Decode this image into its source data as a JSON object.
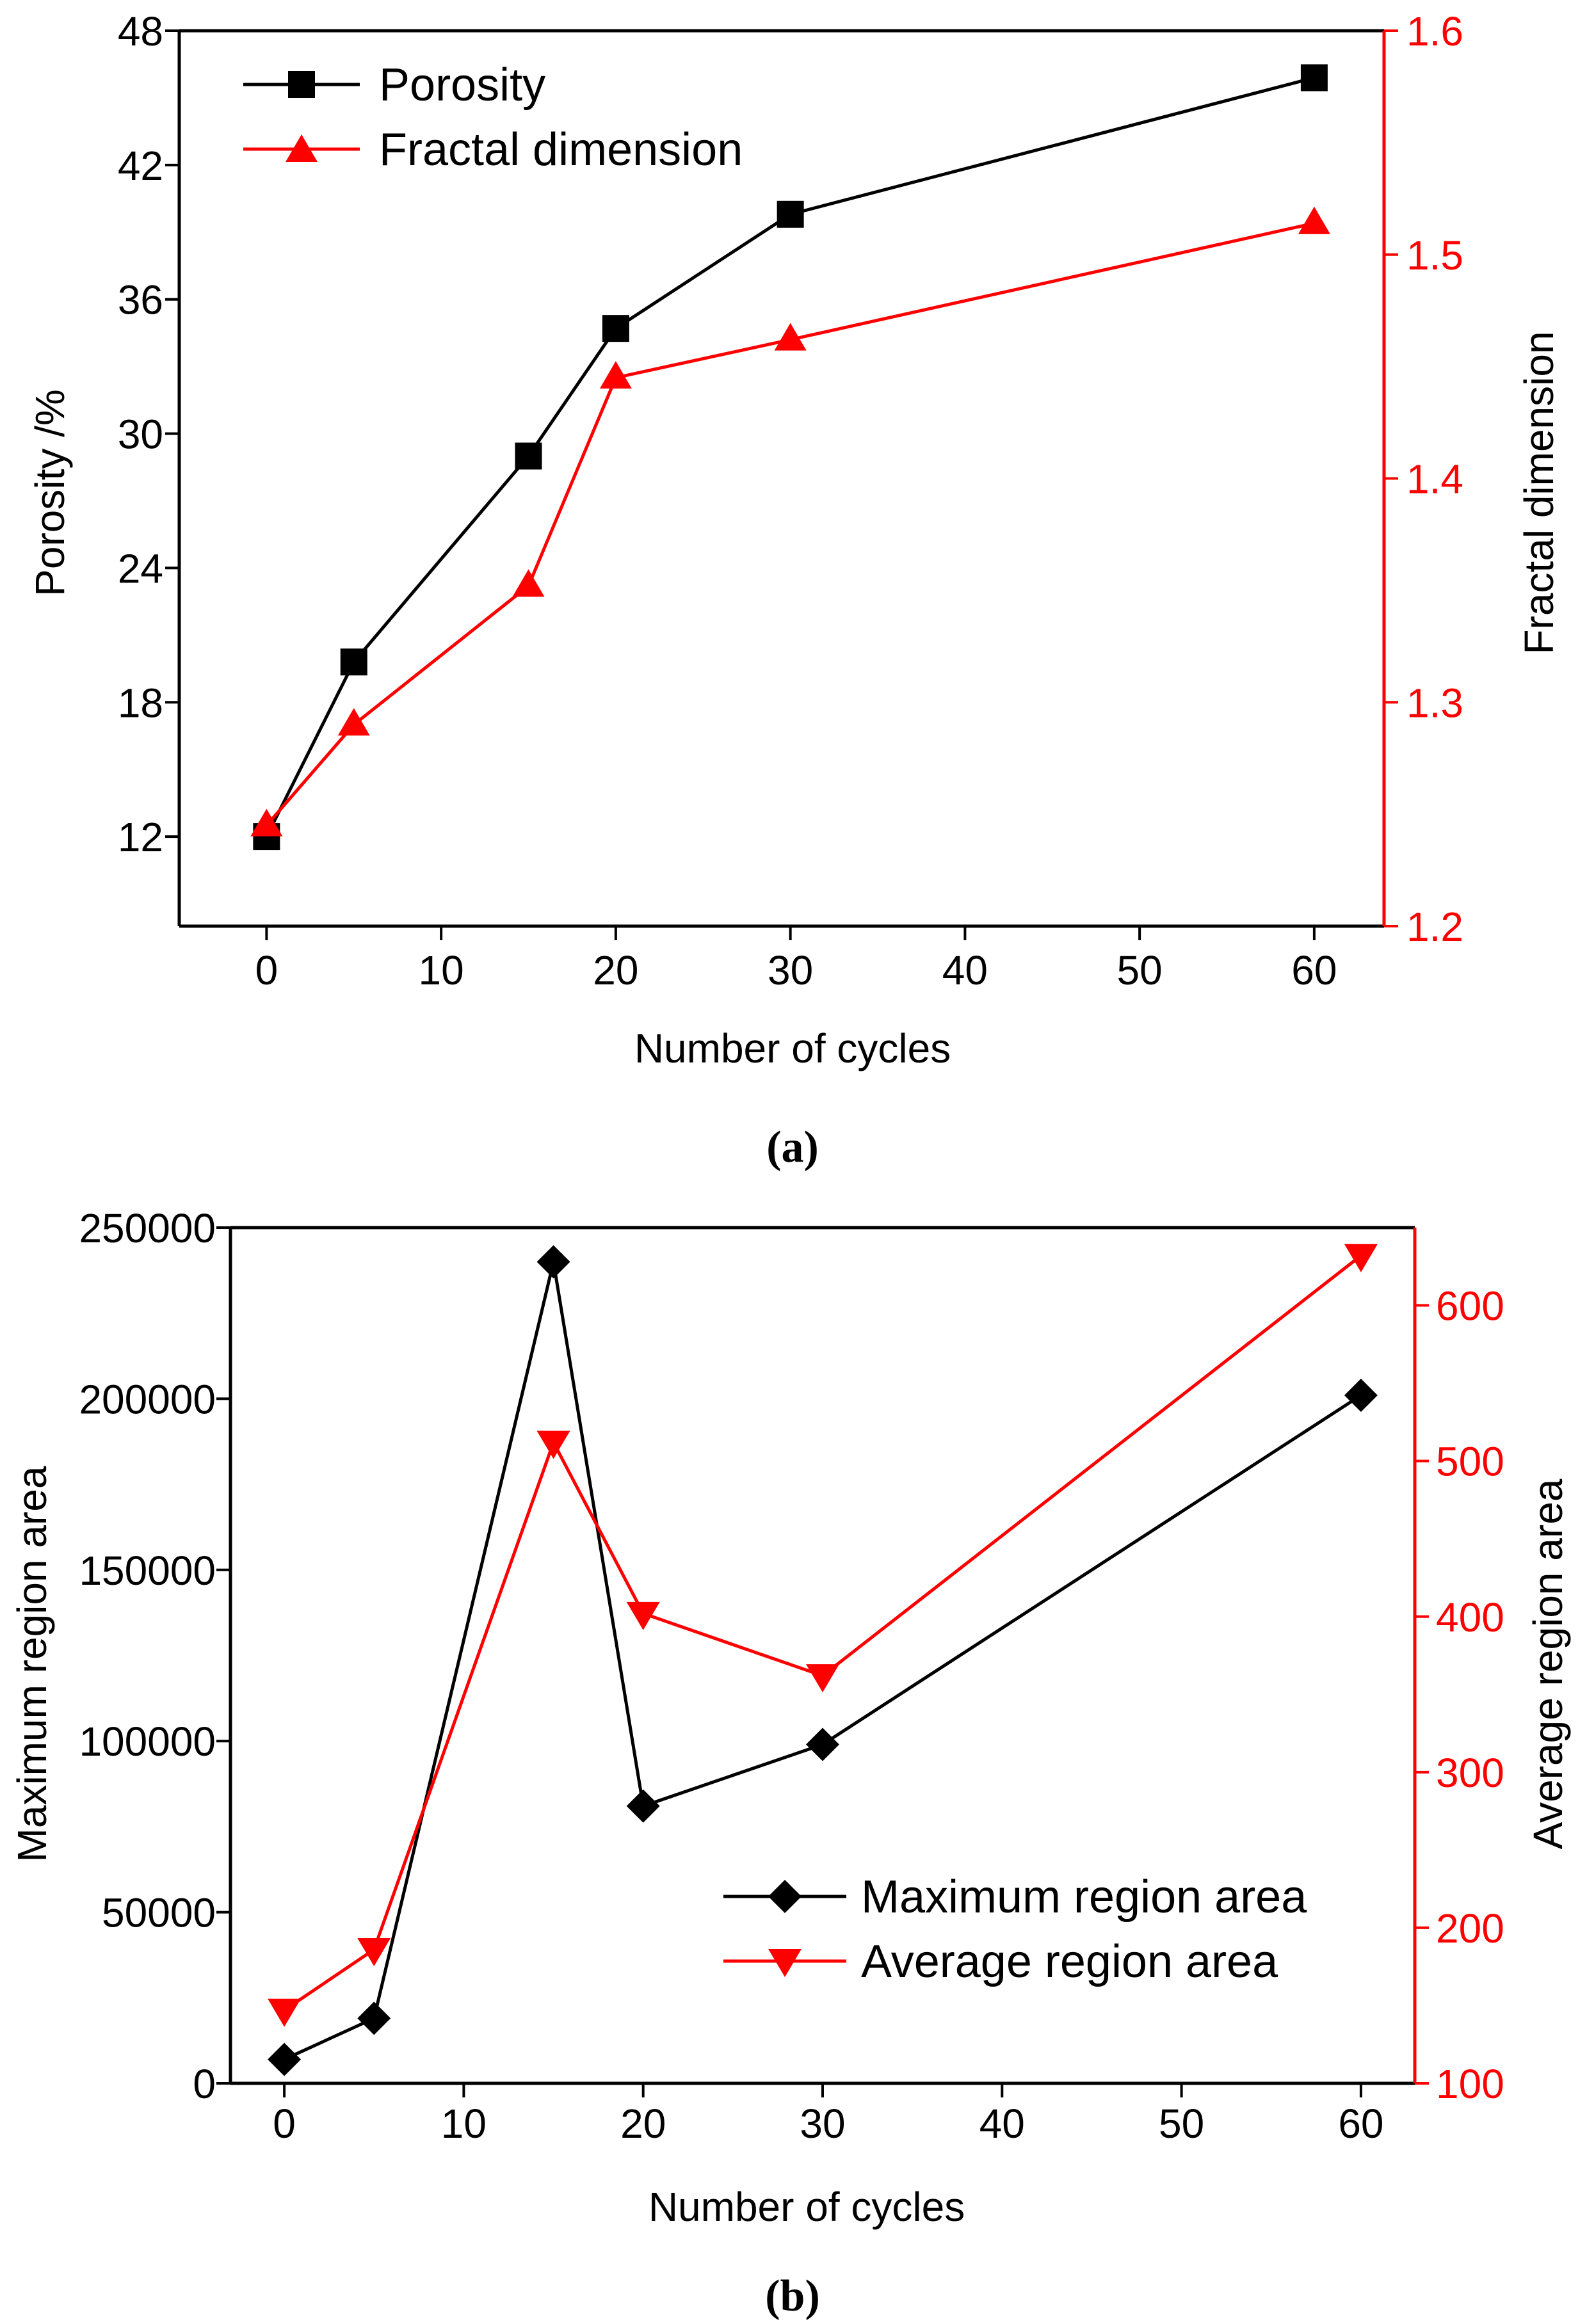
{
  "colors": {
    "black": "#000000",
    "red": "#ff0000"
  },
  "chart_data": [
    {
      "type": "line",
      "panel_label": "(a)",
      "x": [
        0,
        5,
        15,
        20,
        30,
        60
      ],
      "xlabel": "Number of cycles",
      "xlim": [
        -5,
        64
      ],
      "xticks": [
        0,
        10,
        20,
        30,
        40,
        50,
        60
      ],
      "ylabel": "Porosity /%",
      "ylim": [
        8,
        48
      ],
      "yticks": [
        12,
        18,
        24,
        30,
        36,
        42,
        48
      ],
      "y2label": "Fractal dimension",
      "y2lim": [
        1.2,
        1.6
      ],
      "y2ticks": [
        "1.2",
        "1.3",
        "1.4",
        "1.5",
        "1.6"
      ],
      "legend_position": "top-left",
      "series": [
        {
          "name": "Porosity",
          "axis": "left",
          "marker": "square",
          "color": "#000000",
          "values": [
            12.0,
            19.8,
            29.0,
            34.7,
            39.8,
            45.9
          ]
        },
        {
          "name": "Fractal dimension",
          "axis": "right",
          "marker": "triangle-up",
          "color": "#ff0000",
          "values": [
            1.245,
            1.29,
            1.352,
            1.445,
            1.462,
            1.514
          ]
        }
      ]
    },
    {
      "type": "line",
      "panel_label": "(b)",
      "x": [
        0,
        5,
        15,
        20,
        30,
        60
      ],
      "xlabel": "Number of cycles",
      "xlim": [
        -3,
        63
      ],
      "xticks": [
        0,
        10,
        20,
        30,
        40,
        50,
        60
      ],
      "ylabel": "Maximum region area",
      "ylim": [
        0,
        250000
      ],
      "yticks": [
        0,
        50000,
        100000,
        150000,
        200000,
        250000
      ],
      "y2label": "Average region area",
      "y2lim": [
        100,
        650
      ],
      "y2ticks": [
        "100",
        "200",
        "300",
        "400",
        "500",
        "600"
      ],
      "legend_position": "bottom-right",
      "series": [
        {
          "name": "Maximum region area",
          "axis": "left",
          "marker": "diamond",
          "color": "#000000",
          "values": [
            7000,
            19000,
            240000,
            81000,
            99000,
            201000
          ]
        },
        {
          "name": "Average region area",
          "axis": "right",
          "marker": "triangle-down",
          "color": "#ff0000",
          "values": [
            147,
            186,
            512,
            402,
            362,
            632
          ]
        }
      ]
    }
  ]
}
